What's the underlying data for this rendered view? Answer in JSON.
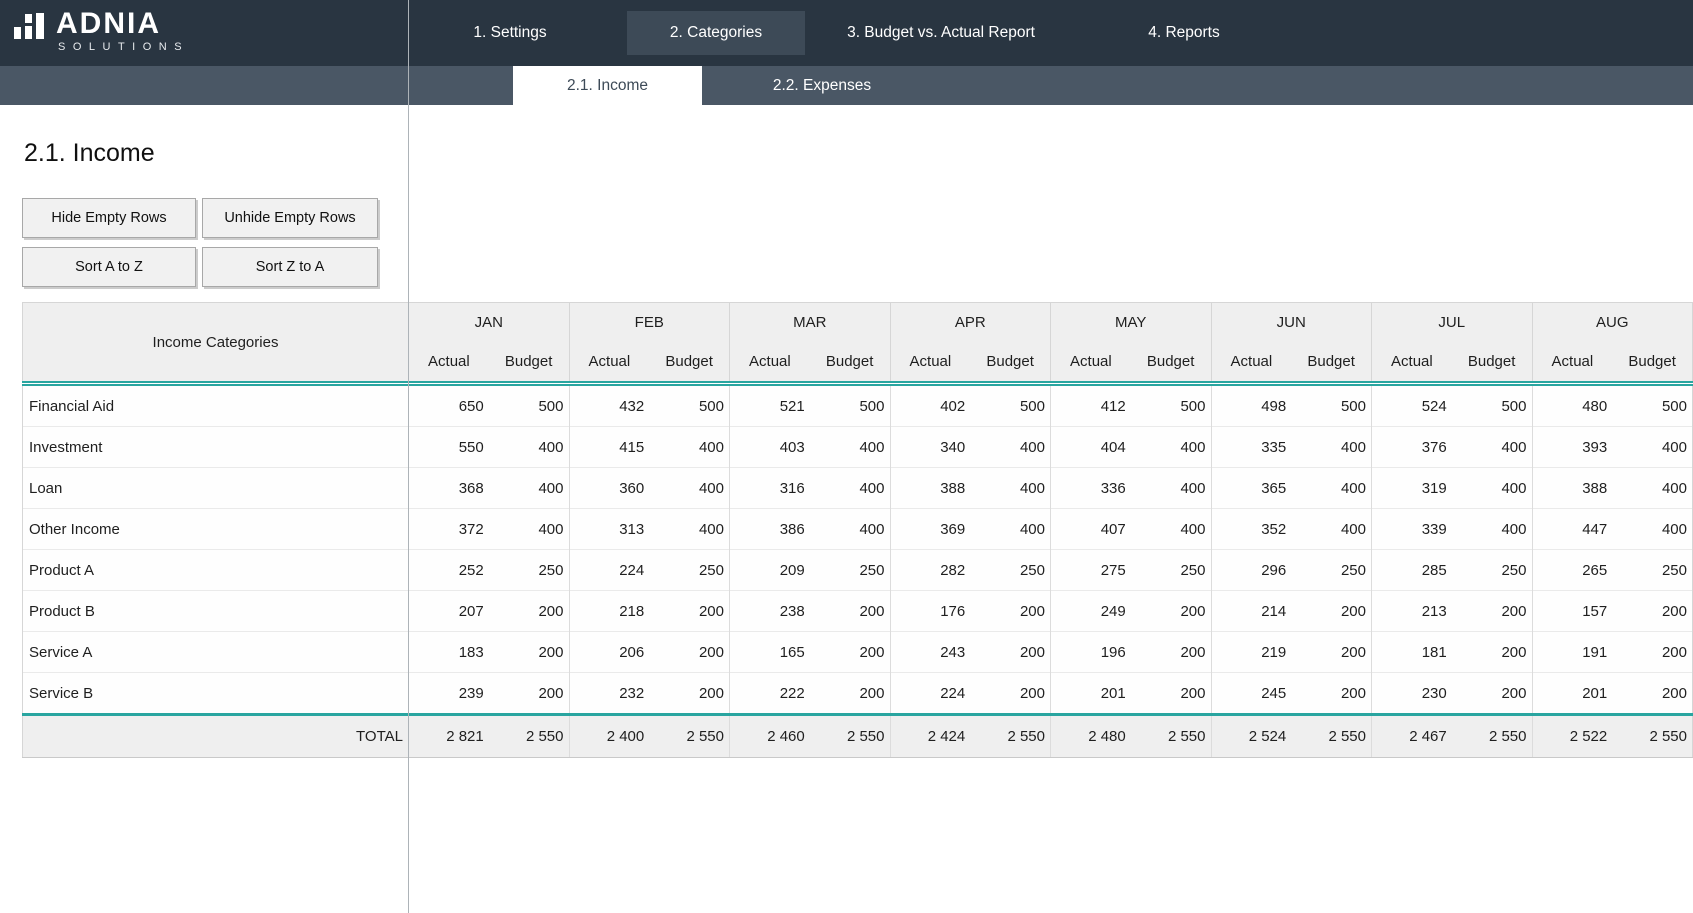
{
  "brand": {
    "name": "ADNIA",
    "subtitle": "SOLUTIONS"
  },
  "nav": {
    "items": [
      {
        "label": "1. Settings",
        "active": false
      },
      {
        "label": "2. Categories",
        "active": true
      },
      {
        "label": "3. Budget vs. Actual Report",
        "active": false
      },
      {
        "label": "4. Reports",
        "active": false
      }
    ]
  },
  "subnav": {
    "items": [
      {
        "label": "2.1. Income",
        "active": true
      },
      {
        "label": "2.2. Expenses",
        "active": false
      }
    ]
  },
  "page": {
    "title": "2.1. Income"
  },
  "buttons": {
    "hide_empty": "Hide Empty Rows",
    "unhide_empty": "Unhide Empty Rows",
    "sort_az": "Sort A to Z",
    "sort_za": "Sort Z to A"
  },
  "table": {
    "category_header": "Income Categories",
    "months": [
      "JAN",
      "FEB",
      "MAR",
      "APR",
      "MAY",
      "JUN",
      "JUL",
      "AUG"
    ],
    "sub_headers": [
      "Actual",
      "Budget"
    ],
    "rows": [
      {
        "category": "Financial Aid",
        "values": [
          650,
          500,
          432,
          500,
          521,
          500,
          402,
          500,
          412,
          500,
          498,
          500,
          524,
          500,
          480,
          500
        ]
      },
      {
        "category": "Investment",
        "values": [
          550,
          400,
          415,
          400,
          403,
          400,
          340,
          400,
          404,
          400,
          335,
          400,
          376,
          400,
          393,
          400
        ]
      },
      {
        "category": "Loan",
        "values": [
          368,
          400,
          360,
          400,
          316,
          400,
          388,
          400,
          336,
          400,
          365,
          400,
          319,
          400,
          388,
          400
        ]
      },
      {
        "category": "Other Income",
        "values": [
          372,
          400,
          313,
          400,
          386,
          400,
          369,
          400,
          407,
          400,
          352,
          400,
          339,
          400,
          447,
          400
        ]
      },
      {
        "category": "Product A",
        "values": [
          252,
          250,
          224,
          250,
          209,
          250,
          282,
          250,
          275,
          250,
          296,
          250,
          285,
          250,
          265,
          250
        ]
      },
      {
        "category": "Product B",
        "values": [
          207,
          200,
          218,
          200,
          238,
          200,
          176,
          200,
          249,
          200,
          214,
          200,
          213,
          200,
          157,
          200
        ]
      },
      {
        "category": "Service A",
        "values": [
          183,
          200,
          206,
          200,
          165,
          200,
          243,
          200,
          196,
          200,
          219,
          200,
          181,
          200,
          191,
          200
        ]
      },
      {
        "category": "Service B",
        "values": [
          239,
          200,
          232,
          200,
          222,
          200,
          224,
          200,
          201,
          200,
          245,
          200,
          230,
          200,
          201,
          200
        ]
      }
    ],
    "total": {
      "label": "TOTAL",
      "values": [
        "2 821",
        "2 550",
        "2 400",
        "2 550",
        "2 460",
        "2 550",
        "2 424",
        "2 550",
        "2 480",
        "2 550",
        "2 524",
        "2 550",
        "2 467",
        "2 550",
        "2 522",
        "2 550"
      ]
    }
  },
  "colors": {
    "topbar": "#293541",
    "subbar": "#4a5765",
    "nav_active": "#3d4a57",
    "accent_teal": "#29a5a0",
    "header_gray": "#efefef",
    "button_gray": "#f1f1f1"
  }
}
